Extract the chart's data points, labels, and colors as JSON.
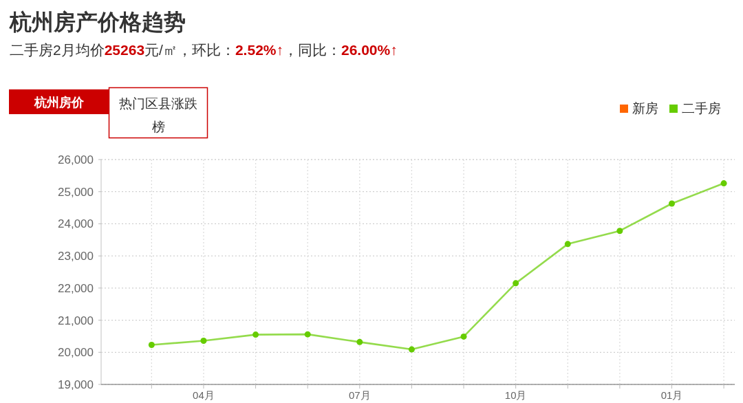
{
  "chart_data": {
    "type": "line",
    "title": "杭州房产价格趋势",
    "subtitle": "二手房2月均价25263元/㎡，环比：2.52%↑，同比：26.00%↑",
    "annotations": [
      "杭州房价",
      "热门区县涨跌榜"
    ],
    "categories": [
      null,
      "04月",
      null,
      null,
      "07月",
      null,
      null,
      "10月",
      null,
      null,
      "01月",
      null
    ],
    "series": [
      {
        "name": "新房",
        "color": "#ff6600",
        "values": [
          null,
          null,
          null,
          null,
          null,
          null,
          null,
          null,
          null,
          null,
          null,
          null
        ]
      },
      {
        "name": "二手房",
        "color": "#66cc00",
        "values": [
          20230,
          20360,
          20550,
          20560,
          20320,
          20090,
          20490,
          22150,
          23370,
          23780,
          24630,
          25260
        ]
      }
    ],
    "ylim": [
      19000,
      26000
    ],
    "yticks": [
      {
        "value": 19000,
        "label": "19,000"
      },
      {
        "value": 20000,
        "label": "20,000"
      },
      {
        "value": 21000,
        "label": "21,000"
      },
      {
        "value": 22000,
        "label": "22,000"
      },
      {
        "value": 23000,
        "label": "23,000"
      },
      {
        "value": 24000,
        "label": "24,000"
      },
      {
        "value": 25000,
        "label": "25,000"
      },
      {
        "value": 26000,
        "label": "26,000"
      }
    ],
    "grid": true,
    "legend": "top right",
    "marker": "circle",
    "line_style": "solid"
  }
}
